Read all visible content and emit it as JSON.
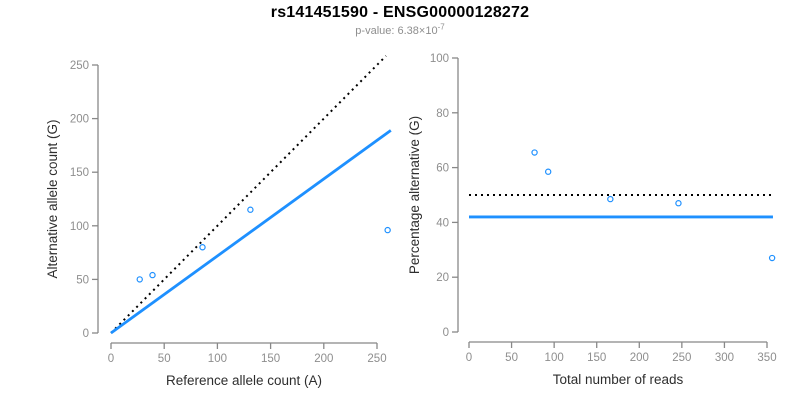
{
  "title": "rs141451590 - ENSG00000128272",
  "subtitle": {
    "text": "p-value: 6.38×10",
    "exponent": "-7"
  },
  "colors": {
    "accent_blue": "#1E90FF",
    "dotted_black": "#000000",
    "axis_gray": "#888888",
    "tick_label_gray": "#8e8e8e",
    "axis_title_dark": "#2e2e2e",
    "subtitle_gray": "#8e8e8e",
    "background": "#ffffff"
  },
  "chart_data": [
    {
      "type": "scatter",
      "name": "allele-counts-panel",
      "xlabel": "Reference allele count (A)",
      "ylabel": "Alternative allele count (G)",
      "xlim": [
        0,
        250
      ],
      "ylim": [
        0,
        250
      ],
      "xticks": [
        0,
        50,
        100,
        150,
        200,
        250
      ],
      "yticks": [
        0,
        50,
        100,
        150,
        200,
        250
      ],
      "grid": false,
      "legend": "none",
      "point_shape": "open-circle",
      "points": [
        {
          "x": 27,
          "y": 50
        },
        {
          "x": 39,
          "y": 54
        },
        {
          "x": 86,
          "y": 80
        },
        {
          "x": 131,
          "y": 115
        },
        {
          "x": 260,
          "y": 96
        }
      ],
      "lines": [
        {
          "name": "expected-50-50-line",
          "style": "dotted",
          "color": "#000000",
          "from": [
            0,
            0
          ],
          "to": [
            258.5,
            258.5
          ],
          "meaning": "y = x (50% expectation)"
        },
        {
          "name": "observed-ratio-line",
          "style": "solid",
          "color": "#1E90FF",
          "from": [
            0,
            0
          ],
          "to": [
            263,
            189
          ],
          "meaning": "y = 0.72x (observed ~42% alternative)"
        }
      ]
    },
    {
      "type": "scatter",
      "name": "percentage-panel",
      "xlabel": "Total number of reads",
      "ylabel": "Percentage alternative (G)",
      "xlim": [
        0,
        350
      ],
      "ylim": [
        0,
        100
      ],
      "xticks": [
        0,
        50,
        100,
        150,
        200,
        250,
        300,
        350
      ],
      "yticks": [
        0,
        20,
        40,
        60,
        80,
        100
      ],
      "grid": false,
      "legend": "none",
      "point_shape": "open-circle",
      "points": [
        {
          "x": 77,
          "y": 65.5
        },
        {
          "x": 93,
          "y": 58.5
        },
        {
          "x": 166,
          "y": 48.5
        },
        {
          "x": 246,
          "y": 47
        },
        {
          "x": 356,
          "y": 27
        }
      ],
      "lines": [
        {
          "name": "expected-50pct-line",
          "style": "dotted",
          "color": "#000000",
          "from": [
            0,
            50
          ],
          "to": [
            357,
            50
          ],
          "meaning": "50% expectation"
        },
        {
          "name": "observed-mean-line",
          "style": "solid",
          "color": "#1E90FF",
          "from": [
            0,
            42
          ],
          "to": [
            357,
            42
          ],
          "meaning": "observed ~42% alternative"
        }
      ]
    }
  ]
}
